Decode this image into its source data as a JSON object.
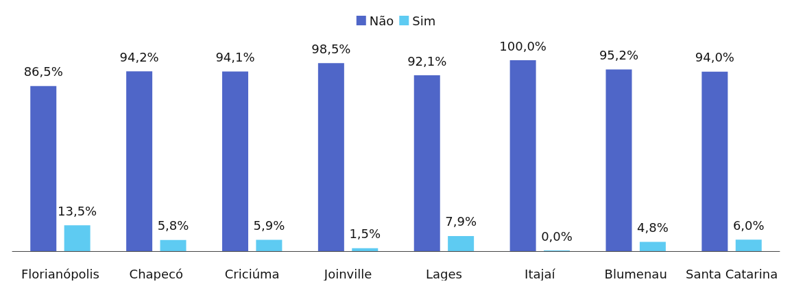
{
  "chart_data": {
    "type": "bar",
    "categories": [
      "Florianópolis",
      "Chapecó",
      "Criciúma",
      "Joinville",
      "Lages",
      "Itajaí",
      "Blumenau",
      "Santa Catarina"
    ],
    "series": [
      {
        "name": "Não",
        "color": "#4f66c8",
        "values": [
          86.5,
          94.2,
          94.1,
          98.5,
          92.1,
          100.0,
          95.2,
          94.0
        ],
        "value_labels": [
          "86,5%",
          "94,2%",
          "94,1%",
          "98,5%",
          "92,1%",
          "100,0%",
          "95,2%",
          "94,0%"
        ]
      },
      {
        "name": "Sim",
        "color": "#5ecbf2",
        "values": [
          13.5,
          5.8,
          5.9,
          1.5,
          7.9,
          0.0,
          4.8,
          6.0
        ],
        "value_labels": [
          "13,5%",
          "5,8%",
          "5,9%",
          "1,5%",
          "7,9%",
          "0,0%",
          "4,8%",
          "6,0%"
        ]
      }
    ],
    "legend": "top"
  }
}
